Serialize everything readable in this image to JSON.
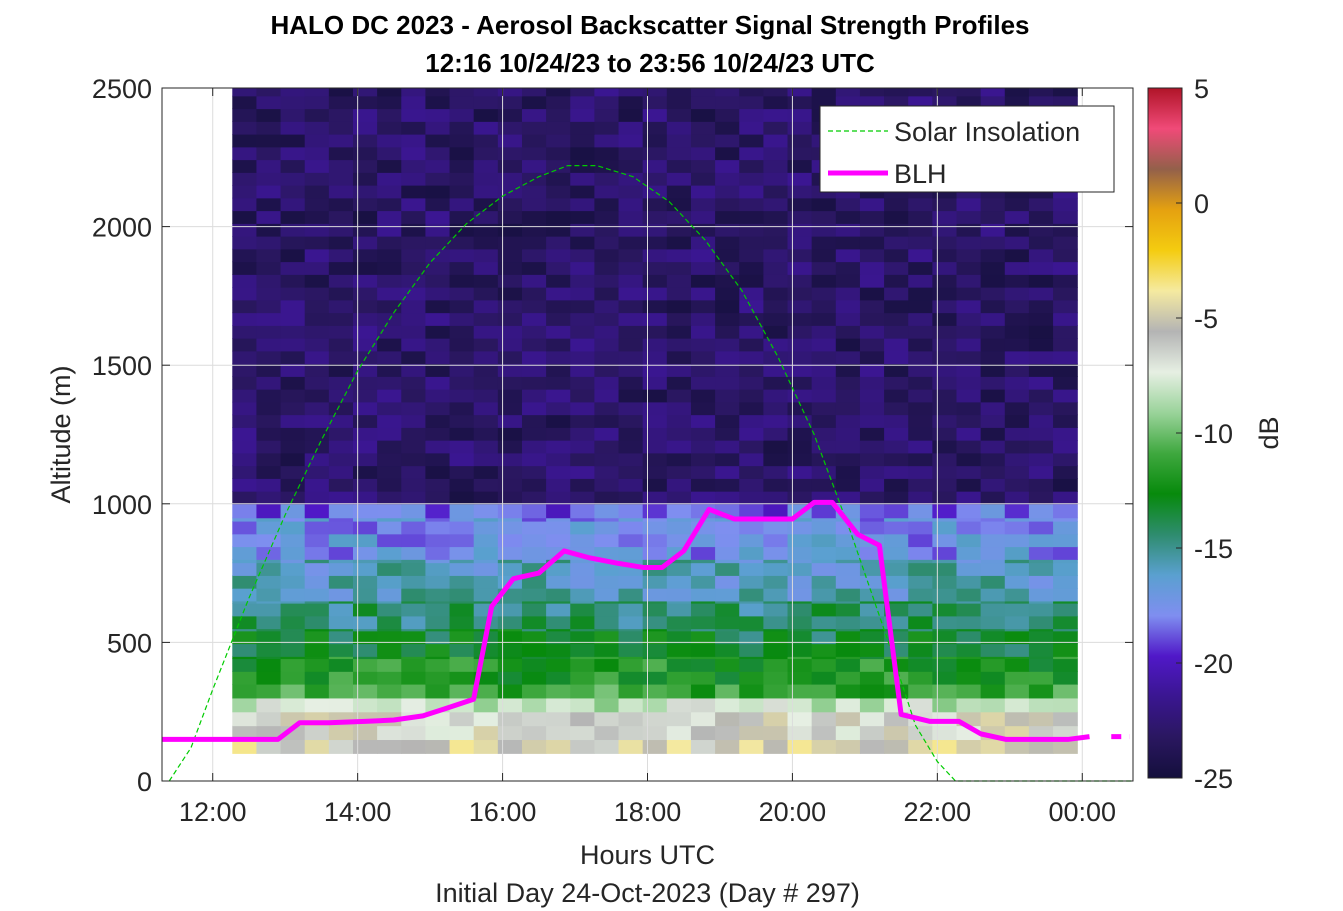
{
  "chart_data": {
    "type": "heatmap",
    "title": "HALO DC 2023 - Aerosol Backscatter Signal Strength Profiles",
    "subtitle": "12:16 10/24/23 to 23:56 10/24/23  UTC",
    "xlabel": "Hours UTC",
    "xlabel2": "Initial Day 24-Oct-2023 (Day # 297)",
    "ylabel": "Altitude (m)",
    "colorbar_label": "dB",
    "xlim": [
      11.3,
      24.7
    ],
    "ylim": [
      0,
      2500
    ],
    "clim": [
      -25,
      5
    ],
    "xticks": [
      12,
      14,
      16,
      18,
      20,
      22,
      24
    ],
    "xtick_labels": [
      "12:00",
      "14:00",
      "16:00",
      "18:00",
      "20:00",
      "22:00",
      "00:00"
    ],
    "yticks": [
      0,
      500,
      1000,
      1500,
      2000,
      2500
    ],
    "ytick_labels": [
      "0",
      "500",
      "1000",
      "1500",
      "2000",
      "2500"
    ],
    "cticks": [
      5,
      0,
      -5,
      -10,
      -15,
      -20,
      -25
    ],
    "ctick_labels": [
      "5",
      "0",
      "-5",
      "-10",
      "-15",
      "-20",
      "-25"
    ],
    "grid": true,
    "legend_position": "top-right",
    "legend": [
      {
        "label": "Solar Insolation",
        "color": "#00cc00",
        "style": "dashed"
      },
      {
        "label": "BLH",
        "color": "#ff00ff",
        "style": "solid"
      }
    ],
    "colormap": [
      "#140f3c",
      "#2a1760",
      "#3a1690",
      "#5018c8",
      "#7f8ef0",
      "#5aa0d0",
      "#2e8c6e",
      "#078a0c",
      "#3fa83f",
      "#9ad39a",
      "#e6efe3",
      "#b4b4b4",
      "#f5eaa0",
      "#f4cc10",
      "#e5a110",
      "#93604a",
      "#f04a78",
      "#b01428"
    ],
    "heatmap": {
      "x_start": 12.27,
      "x_end": 23.93,
      "n_columns": 35,
      "altitude_bins": [
        {
          "range": [
            100,
            150
          ],
          "value": -5
        },
        {
          "range": [
            150,
            200
          ],
          "value": -6
        },
        {
          "range": [
            200,
            250
          ],
          "value": -6
        },
        {
          "range": [
            250,
            300
          ],
          "value": -8
        },
        {
          "range": [
            300,
            350
          ],
          "value": -11
        },
        {
          "range": [
            350,
            450
          ],
          "value": -12
        },
        {
          "range": [
            450,
            550
          ],
          "value": -13.5
        },
        {
          "range": [
            550,
            650
          ],
          "value": -14.5
        },
        {
          "range": [
            650,
            800
          ],
          "value": -16
        },
        {
          "range": [
            800,
            950
          ],
          "value": -17.5
        },
        {
          "range": [
            950,
            1000
          ],
          "value": -18.5
        },
        {
          "range": [
            1000,
            2500
          ],
          "value": -23
        }
      ]
    },
    "series": [
      {
        "name": "BLH",
        "x": [
          11.3,
          12.9,
          13.2,
          13.6,
          14.1,
          14.5,
          14.9,
          15.2,
          15.6,
          15.85,
          16.15,
          16.5,
          16.85,
          17.2,
          17.6,
          17.95,
          18.2,
          18.5,
          18.85,
          19.2,
          19.6,
          20.0,
          20.3,
          20.55,
          20.9,
          21.2,
          21.5,
          21.9,
          22.3,
          22.6,
          22.95,
          23.4,
          23.8,
          24.1
        ],
        "y": [
          150,
          150,
          210,
          210,
          215,
          220,
          235,
          260,
          295,
          630,
          730,
          750,
          830,
          805,
          785,
          770,
          770,
          830,
          980,
          945,
          945,
          945,
          1005,
          1005,
          890,
          850,
          240,
          215,
          215,
          170,
          150,
          150,
          150,
          160
        ]
      },
      {
        "name": "Solar Insolation",
        "x": [
          11.4,
          11.7,
          12.0,
          12.5,
          13.0,
          13.5,
          14.0,
          14.5,
          15.0,
          15.5,
          16.0,
          16.5,
          16.9,
          17.3,
          17.8,
          18.3,
          18.8,
          19.3,
          19.8,
          20.3,
          20.8,
          21.3,
          21.7,
          22.0,
          22.25,
          24.7
        ],
        "y": [
          0,
          120,
          330,
          660,
          960,
          1230,
          1480,
          1690,
          1870,
          2010,
          2110,
          2180,
          2220,
          2220,
          2180,
          2090,
          1950,
          1770,
          1530,
          1250,
          900,
          520,
          200,
          70,
          0,
          0
        ]
      }
    ]
  }
}
